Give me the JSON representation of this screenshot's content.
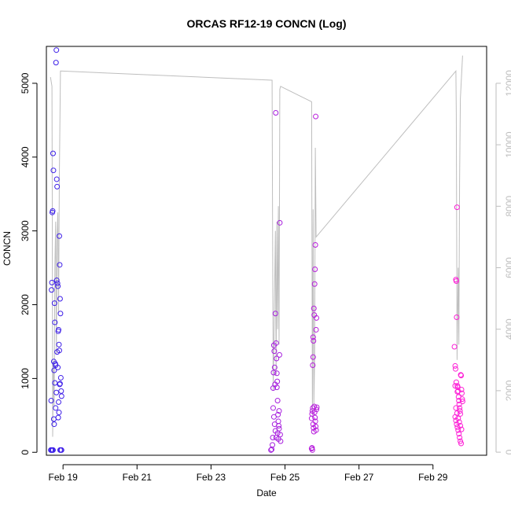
{
  "chart_data": {
    "type": "scatter",
    "title": "ORCAS RF12-19 CONCN (Log)",
    "xlabel": "Date",
    "ylabel": "CONCN",
    "x_unit": "days (February, leap year)",
    "xlim": [
      18.55,
      30.45
    ],
    "ylim": [
      -40,
      5500
    ],
    "y2lim": [
      -100,
      13200
    ],
    "x_ticks": [
      {
        "value": 19,
        "label": "Feb 19"
      },
      {
        "value": 21,
        "label": "Feb 21"
      },
      {
        "value": 23,
        "label": "Feb 23"
      },
      {
        "value": 25,
        "label": "Feb 25"
      },
      {
        "value": 27,
        "label": "Feb 27"
      },
      {
        "value": 29,
        "label": "Feb 29"
      }
    ],
    "y_ticks": [
      0,
      1000,
      2000,
      3000,
      4000,
      5000
    ],
    "y2_ticks": [
      0,
      2000,
      4000,
      6000,
      8000,
      10000,
      12000
    ],
    "series": [
      {
        "color": "#bebebe",
        "axis": "right",
        "kind": "line",
        "points": [
          [
            18.66,
            12200
          ],
          [
            18.7,
            11900
          ],
          [
            18.71,
            8000
          ],
          [
            18.72,
            500
          ],
          [
            18.74,
            2800
          ],
          [
            18.76,
            1500
          ],
          [
            18.78,
            6000
          ],
          [
            18.8,
            7500
          ],
          [
            18.82,
            3200
          ],
          [
            18.84,
            7000
          ],
          [
            18.86,
            7800
          ],
          [
            18.88,
            4500
          ],
          [
            18.9,
            9000
          ],
          [
            18.93,
            12400
          ],
          [
            24.65,
            12100
          ],
          [
            24.66,
            9000
          ],
          [
            24.68,
            2000
          ],
          [
            24.7,
            3500
          ],
          [
            24.72,
            5500
          ],
          [
            24.74,
            7200
          ],
          [
            24.76,
            2500
          ],
          [
            24.78,
            7500
          ],
          [
            24.8,
            4000
          ],
          [
            24.82,
            8000
          ],
          [
            24.84,
            3500
          ],
          [
            24.86,
            11800
          ],
          [
            24.88,
            11900
          ],
          [
            25.72,
            11400
          ],
          [
            25.73,
            6000
          ],
          [
            25.74,
            1200
          ],
          [
            25.76,
            7900
          ],
          [
            25.78,
            1500
          ],
          [
            25.8,
            3000
          ],
          [
            25.82,
            9900
          ],
          [
            25.84,
            7000
          ],
          [
            29.62,
            12400
          ],
          [
            29.63,
            11000
          ],
          [
            29.65,
            3000
          ],
          [
            29.68,
            6000
          ],
          [
            29.7,
            3500
          ],
          [
            29.72,
            8800
          ],
          [
            29.74,
            11500
          ],
          [
            29.8,
            12900
          ]
        ]
      },
      {
        "name": "",
        "axis": "left",
        "kind": "points",
        "color_start": "#3a1fe8",
        "color_end": "#ff1fd6",
        "points": [
          [
            18.67,
            30
          ],
          [
            18.69,
            30
          ],
          [
            18.71,
            30
          ],
          [
            18.73,
            30
          ],
          [
            18.68,
            700
          ],
          [
            18.69,
            2200
          ],
          [
            18.7,
            2300
          ],
          [
            18.71,
            3250
          ],
          [
            18.72,
            3270
          ],
          [
            18.73,
            4050
          ],
          [
            18.74,
            3820
          ],
          [
            18.75,
            450
          ],
          [
            18.76,
            380
          ],
          [
            18.77,
            2020
          ],
          [
            18.78,
            1760
          ],
          [
            18.79,
            1200
          ],
          [
            18.8,
            1180
          ],
          [
            18.81,
            5280
          ],
          [
            18.82,
            5450
          ],
          [
            18.83,
            3700
          ],
          [
            18.84,
            3600
          ],
          [
            18.85,
            2290
          ],
          [
            18.86,
            2250
          ],
          [
            18.87,
            1640
          ],
          [
            18.88,
            1660
          ],
          [
            18.89,
            1460
          ],
          [
            18.9,
            1380
          ],
          [
            18.91,
            920
          ],
          [
            18.92,
            930
          ],
          [
            18.9,
            2930
          ],
          [
            18.91,
            2540
          ],
          [
            18.92,
            2080
          ],
          [
            18.93,
            1880
          ],
          [
            18.94,
            1010
          ],
          [
            18.95,
            830
          ],
          [
            18.96,
            760
          ],
          [
            18.92,
            30
          ],
          [
            18.94,
            30
          ],
          [
            18.96,
            30
          ],
          [
            18.83,
            2330
          ],
          [
            18.84,
            1360
          ],
          [
            18.86,
            1150
          ],
          [
            18.87,
            470
          ],
          [
            18.88,
            680
          ],
          [
            18.89,
            540
          ],
          [
            18.75,
            1230
          ],
          [
            18.76,
            1110
          ],
          [
            18.78,
            940
          ],
          [
            18.8,
            600
          ],
          [
            18.82,
            810
          ],
          [
            24.62,
            30
          ],
          [
            24.64,
            40
          ],
          [
            24.66,
            100
          ],
          [
            24.67,
            200
          ],
          [
            24.68,
            870
          ],
          [
            24.69,
            1080
          ],
          [
            24.7,
            1450
          ],
          [
            24.71,
            1370
          ],
          [
            24.72,
            1150
          ],
          [
            24.73,
            920
          ],
          [
            24.74,
            1880
          ],
          [
            24.75,
            4600
          ],
          [
            24.76,
            1480
          ],
          [
            24.77,
            1270
          ],
          [
            24.78,
            1070
          ],
          [
            24.79,
            960
          ],
          [
            24.8,
            700
          ],
          [
            24.81,
            510
          ],
          [
            24.82,
            420
          ],
          [
            24.83,
            360
          ],
          [
            24.84,
            320
          ],
          [
            24.85,
            1320
          ],
          [
            24.86,
            3110
          ],
          [
            24.87,
            240
          ],
          [
            24.88,
            150
          ],
          [
            24.68,
            600
          ],
          [
            24.7,
            480
          ],
          [
            24.72,
            380
          ],
          [
            24.74,
            290
          ],
          [
            24.76,
            200
          ],
          [
            24.78,
            880
          ],
          [
            24.8,
            260
          ],
          [
            24.82,
            180
          ],
          [
            24.84,
            560
          ],
          [
            25.72,
            50
          ],
          [
            25.73,
            60
          ],
          [
            25.74,
            30
          ],
          [
            25.75,
            1180
          ],
          [
            25.76,
            1290
          ],
          [
            25.77,
            1510
          ],
          [
            25.78,
            1950
          ],
          [
            25.79,
            1860
          ],
          [
            25.8,
            2280
          ],
          [
            25.81,
            2480
          ],
          [
            25.82,
            2810
          ],
          [
            25.83,
            4550
          ],
          [
            25.84,
            1660
          ],
          [
            25.85,
            1820
          ],
          [
            25.72,
            460
          ],
          [
            25.73,
            520
          ],
          [
            25.74,
            560
          ],
          [
            25.75,
            600
          ],
          [
            25.76,
            380
          ],
          [
            25.77,
            330
          ],
          [
            25.78,
            280
          ],
          [
            25.79,
            620
          ],
          [
            25.8,
            540
          ],
          [
            25.81,
            470
          ],
          [
            25.82,
            420
          ],
          [
            25.83,
            350
          ],
          [
            25.84,
            300
          ],
          [
            25.85,
            580
          ],
          [
            25.86,
            610
          ],
          [
            25.76,
            1560
          ],
          [
            29.58,
            1430
          ],
          [
            29.6,
            1170
          ],
          [
            29.61,
            1130
          ],
          [
            29.62,
            2340
          ],
          [
            29.63,
            2320
          ],
          [
            29.64,
            1830
          ],
          [
            29.65,
            3320
          ],
          [
            29.66,
            900
          ],
          [
            29.67,
            880
          ],
          [
            29.68,
            830
          ],
          [
            29.69,
            750
          ],
          [
            29.7,
            700
          ],
          [
            29.71,
            650
          ],
          [
            29.72,
            600
          ],
          [
            29.73,
            560
          ],
          [
            29.74,
            520
          ],
          [
            29.75,
            1050
          ],
          [
            29.76,
            1040
          ],
          [
            29.77,
            850
          ],
          [
            29.78,
            800
          ],
          [
            29.79,
            720
          ],
          [
            29.8,
            690
          ],
          [
            29.6,
            480
          ],
          [
            29.62,
            430
          ],
          [
            29.64,
            380
          ],
          [
            29.66,
            340
          ],
          [
            29.68,
            300
          ],
          [
            29.7,
            250
          ],
          [
            29.72,
            200
          ],
          [
            29.74,
            150
          ],
          [
            29.76,
            120
          ],
          [
            29.62,
            600
          ],
          [
            29.65,
            530
          ],
          [
            29.68,
            460
          ],
          [
            29.71,
            410
          ],
          [
            29.74,
            360
          ],
          [
            29.77,
            310
          ],
          [
            29.6,
            900
          ],
          [
            29.63,
            950
          ],
          [
            29.66,
            820
          ]
        ]
      }
    ]
  }
}
